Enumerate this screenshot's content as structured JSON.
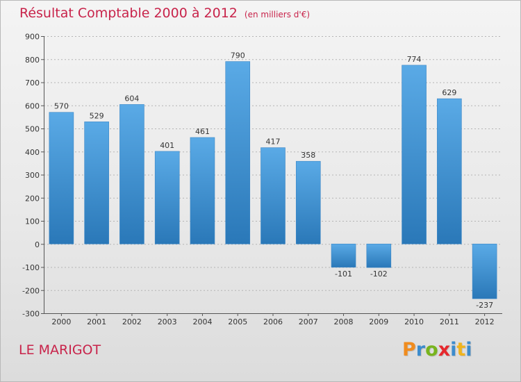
{
  "chart_data": {
    "type": "bar",
    "title": "Résultat Comptable 2000 à 2012",
    "subtitle": "(en milliers d'€)",
    "categories": [
      "2000",
      "2001",
      "2002",
      "2003",
      "2004",
      "2005",
      "2006",
      "2007",
      "2008",
      "2009",
      "2010",
      "2011",
      "2012"
    ],
    "values": [
      570,
      529,
      604,
      401,
      461,
      790,
      417,
      358,
      -101,
      -102,
      774,
      629,
      -237
    ],
    "value_labels": [
      "570",
      "529",
      "604",
      "401",
      "461",
      "790",
      "417",
      "358",
      "-101",
      "-102",
      "774",
      "629",
      "-237"
    ],
    "ylim": [
      -300,
      900
    ],
    "yticks": [
      "-300",
      "-200",
      "-100",
      "0",
      "100",
      "200",
      "300",
      "400",
      "500",
      "600",
      "700",
      "800",
      "900"
    ],
    "xlabel": "",
    "ylabel": "",
    "grid": true,
    "bar_color_light": "#5aaae6",
    "bar_color_dark": "#2a78b8"
  },
  "footer": {
    "commune": "LE MARIGOT",
    "logo_letters": [
      "P",
      "r",
      "o",
      "x",
      "i",
      "t",
      "i"
    ],
    "logo_colors": [
      "#f08c1e",
      "#3c8ccd",
      "#78b41e",
      "#e6282d",
      "#3c8ccd",
      "#f0b41e",
      "#3c8ccd"
    ]
  }
}
